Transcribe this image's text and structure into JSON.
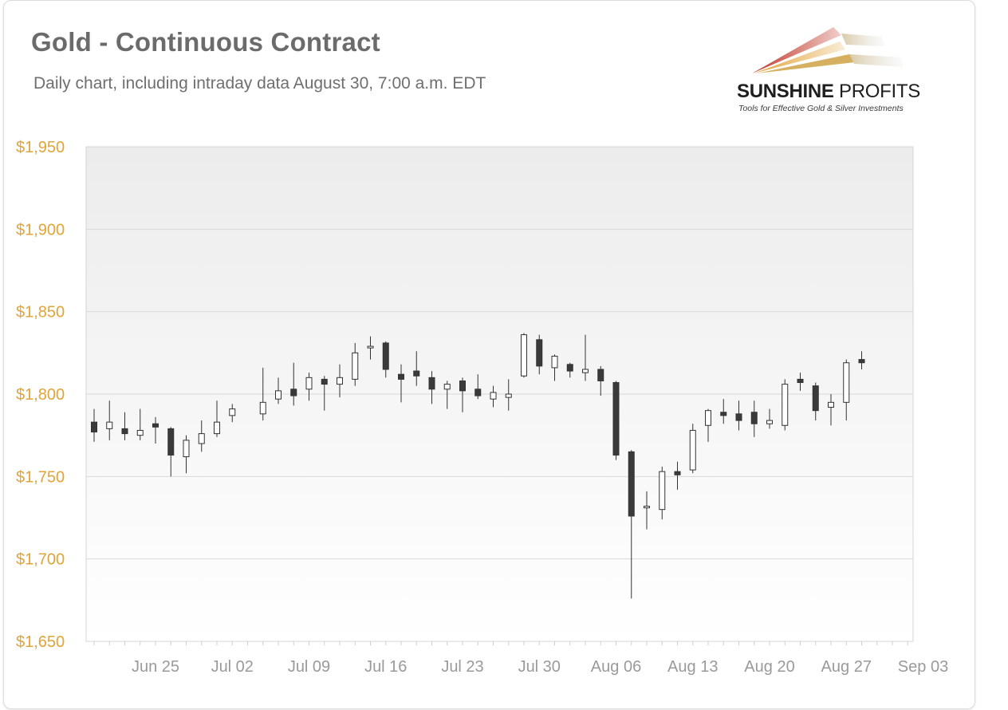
{
  "header": {
    "title": "Gold - Continuous Contract",
    "subtitle": "Daily chart, including intraday data August 30, 7:00 a.m. EDT"
  },
  "logo": {
    "name_bold": "SUNSHINE",
    "name_light": "PROFITS",
    "tagline": "Tools for Effective Gold & Silver Investments"
  },
  "colors": {
    "y_tick_label": "#e0a43a",
    "x_tick_label": "#9a9a9a",
    "bearish_body": "#3a3a3a",
    "bullish_body": "#ffffff",
    "logo_red": "#c0392b",
    "logo_gold": "#e0a43a"
  },
  "chart_data": {
    "type": "candlestick",
    "title": "Gold - Continuous Contract",
    "subtitle": "Daily chart, including intraday data August 30, 7:00 a.m. EDT",
    "ylim": [
      1650,
      1950
    ],
    "y_ticks": [
      1950,
      1900,
      1850,
      1800,
      1750,
      1700,
      1650
    ],
    "y_tick_labels": [
      "$1,950",
      "$1,900",
      "$1,850",
      "$1,800",
      "$1,750",
      "$1,700",
      "$1,650"
    ],
    "x_tick_labels": [
      "Jun 25",
      "Jul 02",
      "Jul 09",
      "Jul 16",
      "Jul 23",
      "Jul 30",
      "Aug 06",
      "Aug 13",
      "Aug 20",
      "Aug 27",
      "Sep 03"
    ],
    "grid": "horizontal",
    "candles": [
      {
        "date": "Jun 21",
        "open": 1783,
        "high": 1791,
        "low": 1771,
        "close": 1777
      },
      {
        "date": "Jun 22",
        "open": 1779,
        "high": 1796,
        "low": 1772,
        "close": 1783
      },
      {
        "date": "Jun 23",
        "open": 1779,
        "high": 1789,
        "low": 1772,
        "close": 1776
      },
      {
        "date": "Jun 24",
        "open": 1775,
        "high": 1791,
        "low": 1772,
        "close": 1778
      },
      {
        "date": "Jun 25",
        "open": 1782,
        "high": 1786,
        "low": 1770,
        "close": 1780
      },
      {
        "date": "Jun 28",
        "open": 1779,
        "high": 1780,
        "low": 1750,
        "close": 1763
      },
      {
        "date": "Jun 29",
        "open": 1762,
        "high": 1775,
        "low": 1752,
        "close": 1772
      },
      {
        "date": "Jun 30",
        "open": 1770,
        "high": 1784,
        "low": 1765,
        "close": 1776
      },
      {
        "date": "Jul 01",
        "open": 1776,
        "high": 1796,
        "low": 1774,
        "close": 1783
      },
      {
        "date": "Jul 02",
        "open": 1787,
        "high": 1794,
        "low": 1783,
        "close": 1791
      },
      {
        "date": "Jul 06",
        "open": 1788,
        "high": 1816,
        "low": 1784,
        "close": 1795
      },
      {
        "date": "Jul 07",
        "open": 1797,
        "high": 1810,
        "low": 1794,
        "close": 1802
      },
      {
        "date": "Jul 08",
        "open": 1803,
        "high": 1819,
        "low": 1793,
        "close": 1799
      },
      {
        "date": "Jul 09",
        "open": 1803,
        "high": 1813,
        "low": 1796,
        "close": 1810
      },
      {
        "date": "Jul 12",
        "open": 1809,
        "high": 1811,
        "low": 1790,
        "close": 1806
      },
      {
        "date": "Jul 13",
        "open": 1806,
        "high": 1818,
        "low": 1798,
        "close": 1810
      },
      {
        "date": "Jul 14",
        "open": 1809,
        "high": 1831,
        "low": 1805,
        "close": 1825
      },
      {
        "date": "Jul 15",
        "open": 1828,
        "high": 1835,
        "low": 1821,
        "close": 1829
      },
      {
        "date": "Jul 16",
        "open": 1831,
        "high": 1832,
        "low": 1810,
        "close": 1815
      },
      {
        "date": "Jul 19",
        "open": 1812,
        "high": 1818,
        "low": 1795,
        "close": 1809
      },
      {
        "date": "Jul 20",
        "open": 1814,
        "high": 1826,
        "low": 1805,
        "close": 1811
      },
      {
        "date": "Jul 21",
        "open": 1810,
        "high": 1814,
        "low": 1794,
        "close": 1803
      },
      {
        "date": "Jul 22",
        "open": 1803,
        "high": 1808,
        "low": 1791,
        "close": 1806
      },
      {
        "date": "Jul 23",
        "open": 1808,
        "high": 1810,
        "low": 1789,
        "close": 1802
      },
      {
        "date": "Jul 26",
        "open": 1803,
        "high": 1812,
        "low": 1797,
        "close": 1799
      },
      {
        "date": "Jul 27",
        "open": 1797,
        "high": 1805,
        "low": 1792,
        "close": 1801
      },
      {
        "date": "Jul 28",
        "open": 1798,
        "high": 1809,
        "low": 1790,
        "close": 1800
      },
      {
        "date": "Jul 29",
        "open": 1811,
        "high": 1837,
        "low": 1810,
        "close": 1836
      },
      {
        "date": "Jul 30",
        "open": 1833,
        "high": 1836,
        "low": 1812,
        "close": 1817
      },
      {
        "date": "Aug 02",
        "open": 1816,
        "high": 1824,
        "low": 1808,
        "close": 1823
      },
      {
        "date": "Aug 03",
        "open": 1818,
        "high": 1819,
        "low": 1810,
        "close": 1814
      },
      {
        "date": "Aug 04",
        "open": 1813,
        "high": 1836,
        "low": 1808,
        "close": 1815
      },
      {
        "date": "Aug 05",
        "open": 1815,
        "high": 1817,
        "low": 1799,
        "close": 1808
      },
      {
        "date": "Aug 06",
        "open": 1807,
        "high": 1808,
        "low": 1760,
        "close": 1763
      },
      {
        "date": "Aug 09",
        "open": 1765,
        "high": 1766,
        "low": 1676,
        "close": 1726
      },
      {
        "date": "Aug 10",
        "open": 1731,
        "high": 1741,
        "low": 1718,
        "close": 1732
      },
      {
        "date": "Aug 11",
        "open": 1730,
        "high": 1756,
        "low": 1724,
        "close": 1753
      },
      {
        "date": "Aug 12",
        "open": 1753,
        "high": 1759,
        "low": 1742,
        "close": 1751
      },
      {
        "date": "Aug 13",
        "open": 1754,
        "high": 1782,
        "low": 1752,
        "close": 1778
      },
      {
        "date": "Aug 16",
        "open": 1781,
        "high": 1791,
        "low": 1771,
        "close": 1790
      },
      {
        "date": "Aug 17",
        "open": 1789,
        "high": 1797,
        "low": 1782,
        "close": 1787
      },
      {
        "date": "Aug 18",
        "open": 1788,
        "high": 1796,
        "low": 1778,
        "close": 1784
      },
      {
        "date": "Aug 19",
        "open": 1789,
        "high": 1796,
        "low": 1774,
        "close": 1782
      },
      {
        "date": "Aug 20",
        "open": 1782,
        "high": 1791,
        "low": 1779,
        "close": 1784
      },
      {
        "date": "Aug 23",
        "open": 1781,
        "high": 1809,
        "low": 1778,
        "close": 1806
      },
      {
        "date": "Aug 24",
        "open": 1809,
        "high": 1813,
        "low": 1802,
        "close": 1807
      },
      {
        "date": "Aug 25",
        "open": 1805,
        "high": 1807,
        "low": 1784,
        "close": 1790
      },
      {
        "date": "Aug 26",
        "open": 1792,
        "high": 1800,
        "low": 1781,
        "close": 1795
      },
      {
        "date": "Aug 27",
        "open": 1795,
        "high": 1821,
        "low": 1784,
        "close": 1819
      },
      {
        "date": "Aug 30",
        "open": 1821,
        "high": 1826,
        "low": 1815,
        "close": 1819
      }
    ]
  }
}
